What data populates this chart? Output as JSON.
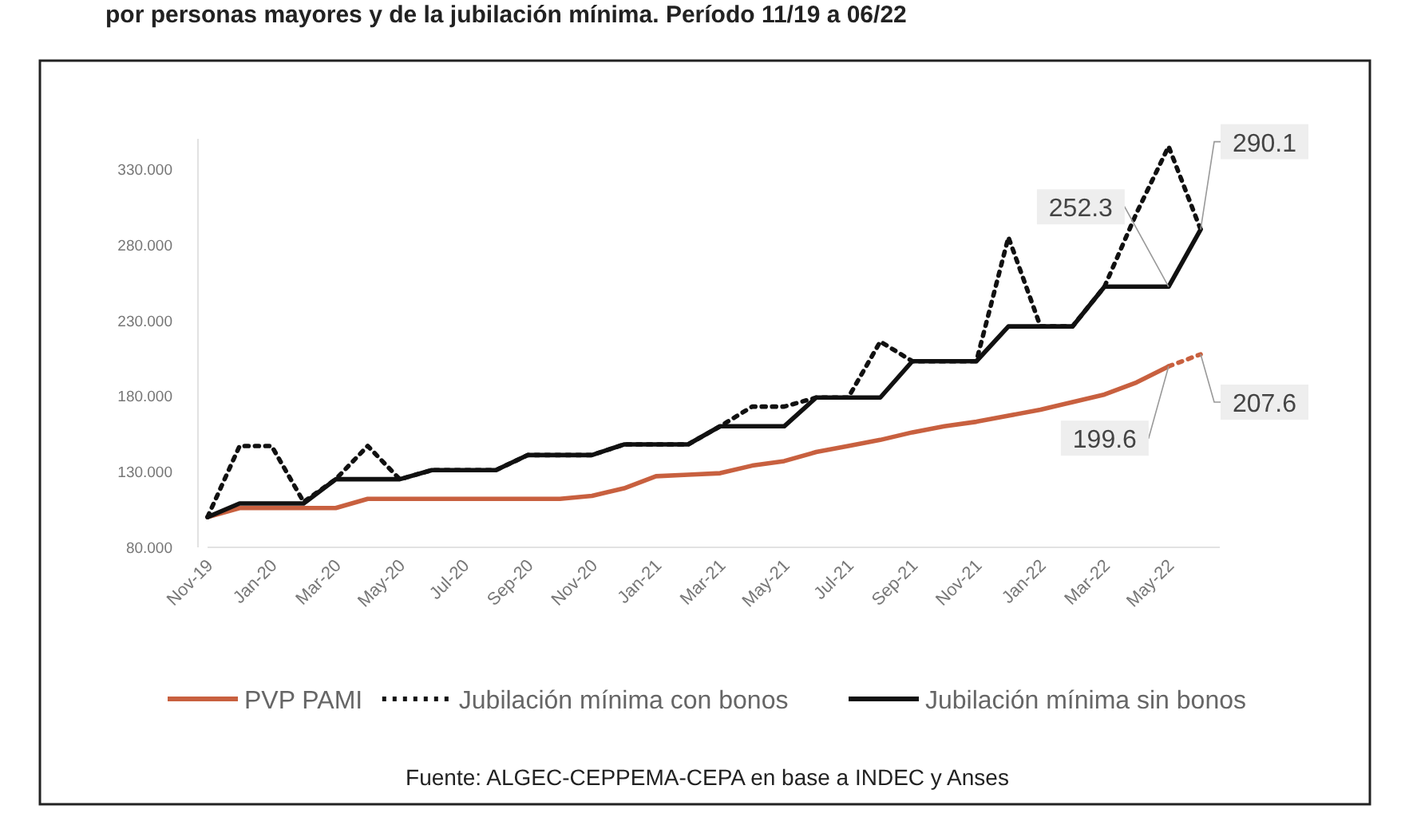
{
  "chart_data": {
    "type": "line",
    "title": "por personas mayores y de la jubilación mínima. Período 11/19 a 06/22",
    "categories": [
      "Nov-19",
      null,
      "Jan-20",
      null,
      "Mar-20",
      null,
      "May-20",
      null,
      "Jul-20",
      null,
      "Sep-20",
      null,
      "Nov-20",
      null,
      "Jan-21",
      null,
      "Mar-21",
      null,
      "May-21",
      null,
      "Jul-21",
      null,
      "Sep-21",
      null,
      "Nov-21",
      null,
      "Jan-22",
      null,
      "Mar-22",
      null,
      "May-22",
      null
    ],
    "series": [
      {
        "name": "PVP PAMI",
        "color": "#c8603f",
        "line_style": "solid",
        "values": [
          100,
          106,
          106,
          106,
          106,
          112,
          112,
          112,
          112,
          112,
          112,
          112,
          114,
          119,
          127,
          128,
          129,
          134,
          137,
          143,
          147,
          151,
          156,
          160,
          163,
          167,
          171,
          176,
          181,
          189,
          199.6,
          null
        ],
        "value_labels": [
          null,
          null,
          null,
          null,
          null,
          null,
          null,
          null,
          null,
          null,
          null,
          null,
          null,
          null,
          null,
          null,
          null,
          null,
          null,
          null,
          null,
          null,
          null,
          null,
          null,
          null,
          null,
          null,
          null,
          null,
          "199.6",
          null
        ]
      },
      {
        "color": "#c8603f",
        "line_style": "dotted",
        "values": [
          null,
          null,
          null,
          null,
          null,
          null,
          null,
          null,
          null,
          null,
          null,
          null,
          null,
          null,
          null,
          null,
          null,
          null,
          null,
          null,
          null,
          null,
          null,
          null,
          null,
          null,
          null,
          null,
          null,
          null,
          199.6,
          207.6
        ],
        "value_labels": [
          null,
          null,
          null,
          null,
          null,
          null,
          null,
          null,
          null,
          null,
          null,
          null,
          null,
          null,
          null,
          null,
          null,
          null,
          null,
          null,
          null,
          null,
          null,
          null,
          null,
          null,
          null,
          null,
          null,
          null,
          null,
          "207.6"
        ]
      },
      {
        "name": "Jubilación mínima con bonos",
        "color": "#111111",
        "line_style": "dotted",
        "values": [
          100,
          147,
          147,
          110,
          125,
          147,
          125,
          131,
          131,
          131,
          141,
          141,
          141,
          148,
          148,
          148,
          160,
          173,
          173,
          179,
          179,
          216,
          203,
          203,
          203,
          285,
          226,
          226,
          252.3,
          301,
          345,
          290.1
        ]
      },
      {
        "name": "Jubilación mínima sin bonos",
        "color": "#111111",
        "line_style": "solid",
        "values": [
          100,
          109,
          109,
          109,
          125,
          125,
          125,
          131,
          131,
          131,
          141,
          141,
          141,
          148,
          148,
          148,
          160,
          160,
          160,
          179,
          179,
          179,
          203,
          203,
          203,
          226,
          226,
          226,
          252.3,
          252.3,
          252.3,
          290.1
        ],
        "value_labels": [
          null,
          null,
          null,
          null,
          null,
          null,
          null,
          null,
          null,
          null,
          null,
          null,
          null,
          null,
          null,
          null,
          null,
          null,
          null,
          null,
          null,
          null,
          null,
          null,
          null,
          null,
          null,
          null,
          null,
          null,
          "252.3",
          "290.1"
        ]
      }
    ],
    "ylim": [
      80,
      350
    ],
    "yticks": [
      {
        "value": 80,
        "label": "80.000"
      },
      {
        "value": 130,
        "label": "130.000"
      },
      {
        "value": 180,
        "label": "180.000"
      },
      {
        "value": 230,
        "label": "230.000"
      },
      {
        "value": 280,
        "label": "280.000"
      },
      {
        "value": 330,
        "label": "330.000"
      }
    ],
    "grid": false,
    "legend": "bottom",
    "marker": "none",
    "annotations": [
      "Fuente: ALGEC-CEPPEMA-CEPA en base a INDEC y Anses"
    ]
  }
}
